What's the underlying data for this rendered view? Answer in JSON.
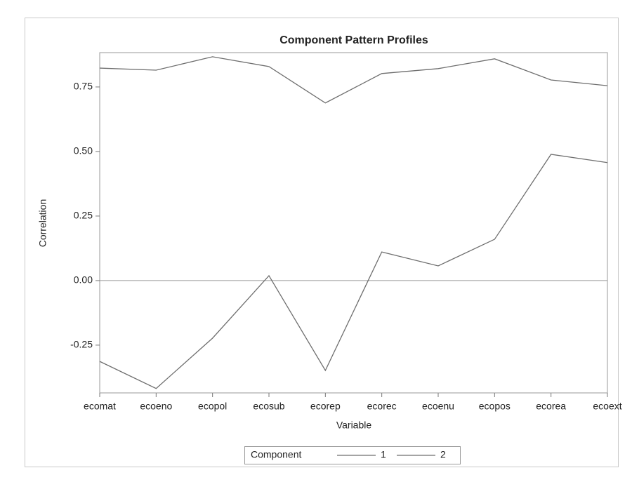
{
  "chart_data": {
    "type": "line",
    "title": "Component Pattern Profiles",
    "xlabel": "Variable",
    "ylabel": "Correlation",
    "categories": [
      "ecomat",
      "ecoeno",
      "ecopol",
      "ecosub",
      "ecorep",
      "ecorec",
      "ecoenu",
      "ecopos",
      "ecorea",
      "ecoext"
    ],
    "series": [
      {
        "name": "1",
        "color": "#6e6e6e",
        "values": [
          0.823,
          0.815,
          0.867,
          0.829,
          0.688,
          0.802,
          0.821,
          0.859,
          0.777,
          0.755
        ]
      },
      {
        "name": "2",
        "color": "#6e6e6e",
        "values": [
          -0.313,
          -0.418,
          -0.223,
          0.019,
          -0.348,
          0.111,
          0.057,
          0.16,
          0.489,
          0.457
        ]
      }
    ],
    "legend_title": "Component",
    "legend": "bottom",
    "reference_line": 0,
    "ylim": [
      -0.435,
      0.883
    ],
    "yticks": [
      {
        "value": -0.25,
        "label": "-0.25"
      },
      {
        "value": 0,
        "label": "0.00"
      },
      0.25,
      {
        "value": 0.5,
        "label": "0.50"
      },
      0.75
    ]
  }
}
